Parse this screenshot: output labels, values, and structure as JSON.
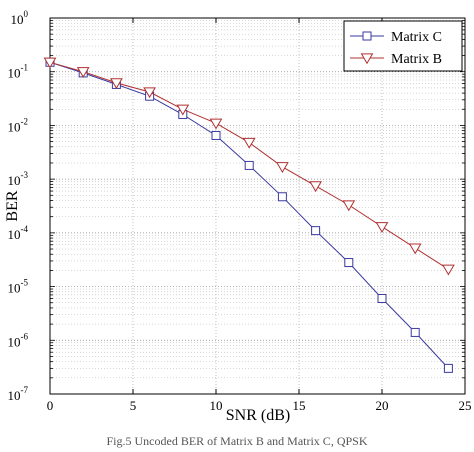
{
  "chart_data": {
    "type": "line",
    "title": "",
    "xlabel": "SNR (dB)",
    "ylabel": "BER",
    "x_scale": "linear",
    "y_scale": "log",
    "xlim": [
      0,
      25
    ],
    "ylim": [
      1e-07,
      1
    ],
    "x_ticks": [
      "0",
      "5",
      "10",
      "15",
      "20",
      "25"
    ],
    "y_ticks": [
      {
        "base": "10",
        "exp": "0"
      },
      {
        "base": "10",
        "exp": "-1"
      },
      {
        "base": "10",
        "exp": "-2"
      },
      {
        "base": "10",
        "exp": "-3"
      },
      {
        "base": "10",
        "exp": "-4"
      },
      {
        "base": "10",
        "exp": "-5"
      },
      {
        "base": "10",
        "exp": "-6"
      },
      {
        "base": "10",
        "exp": "-7"
      }
    ],
    "grid": true,
    "legend_position": "top-right",
    "series": [
      {
        "name": "Matrix C",
        "color": "#3a3aa0",
        "marker": "square",
        "x": [
          0,
          2,
          4,
          6,
          8,
          10,
          12,
          14,
          16,
          18,
          20,
          22,
          24
        ],
        "y": [
          0.15,
          0.095,
          0.058,
          0.035,
          0.016,
          0.0065,
          0.0018,
          0.00047,
          0.00011,
          2.8e-05,
          6e-06,
          1.4e-06,
          3e-07
        ]
      },
      {
        "name": "Matrix B",
        "color": "#b03030",
        "marker": "triangle-down",
        "x": [
          0,
          2,
          4,
          6,
          8,
          10,
          12,
          14,
          16,
          18,
          20,
          22,
          24
        ],
        "y": [
          0.15,
          0.1,
          0.062,
          0.042,
          0.02,
          0.011,
          0.0048,
          0.0017,
          0.00075,
          0.00033,
          0.00013,
          5.2e-05,
          2.1e-05
        ]
      }
    ]
  },
  "caption": "Fig.5    Uncoded BER of Matrix B and Matrix C, QPSK"
}
